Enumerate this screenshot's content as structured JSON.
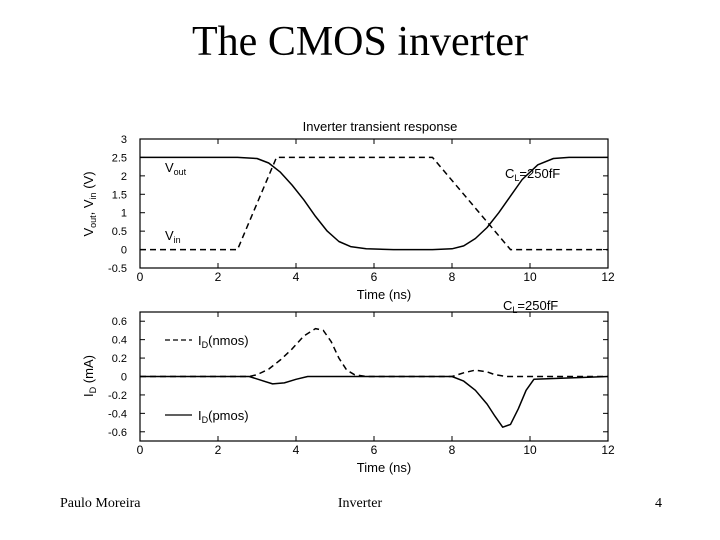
{
  "slide": {
    "title": "The CMOS inverter",
    "footer_left": "Paulo Moreira",
    "footer_center": "Inverter",
    "footer_right": "4"
  },
  "chart_data": [
    {
      "type": "line",
      "title": "Inverter transient response",
      "annotation": "C_L=250fF",
      "xlabel": "Time (ns)",
      "ylabel": "V_out, V_in (V)",
      "xlim": [
        0,
        12
      ],
      "ylim": [
        -0.5,
        3
      ],
      "xticks": [
        "0",
        "2",
        "4",
        "6",
        "8",
        "10",
        "12"
      ],
      "yticks": [
        "-0.5",
        "0",
        "0.5",
        "1",
        "1.5",
        "2",
        "2.5",
        "3"
      ],
      "series": [
        {
          "name": "V_out",
          "style": "solid",
          "x": [
            0,
            2.5,
            3.0,
            3.3,
            3.6,
            3.9,
            4.2,
            4.5,
            4.8,
            5.1,
            5.4,
            5.8,
            6.5,
            7.5,
            8.0,
            8.3,
            8.6,
            8.9,
            9.2,
            9.5,
            9.8,
            10.2,
            10.6,
            11.0,
            12.0
          ],
          "y": [
            2.5,
            2.5,
            2.47,
            2.35,
            2.1,
            1.75,
            1.35,
            0.9,
            0.5,
            0.22,
            0.08,
            0.02,
            0.0,
            0.0,
            0.02,
            0.1,
            0.3,
            0.6,
            1.0,
            1.45,
            1.9,
            2.3,
            2.47,
            2.5,
            2.5
          ]
        },
        {
          "name": "V_in",
          "style": "dashed",
          "x": [
            0,
            2.5,
            3.0,
            3.5,
            7.5,
            9.5,
            12
          ],
          "y": [
            0,
            0,
            1.25,
            2.5,
            2.5,
            0,
            0
          ]
        }
      ]
    },
    {
      "type": "line",
      "annotation": "C_L=250fF",
      "xlabel": "Time (ns)",
      "ylabel": "I_D (mA)",
      "xlim": [
        0,
        12
      ],
      "ylim": [
        -0.7,
        0.7
      ],
      "xticks": [
        "0",
        "2",
        "4",
        "6",
        "8",
        "10",
        "12"
      ],
      "yticks": [
        "0.6",
        "0.4",
        "0.2",
        "0",
        "-0.2",
        "-0.4",
        "-0.6"
      ],
      "series": [
        {
          "name": "I_D(nmos)",
          "style": "dashed",
          "x": [
            0,
            2.8,
            3.0,
            3.3,
            3.6,
            3.9,
            4.2,
            4.5,
            4.7,
            4.9,
            5.1,
            5.3,
            5.5,
            5.8,
            8.0,
            8.3,
            8.6,
            8.9,
            9.1,
            9.4,
            12
          ],
          "y": [
            0,
            0,
            0.02,
            0.08,
            0.18,
            0.3,
            0.44,
            0.52,
            0.5,
            0.38,
            0.2,
            0.07,
            0.02,
            0,
            0,
            0.04,
            0.07,
            0.05,
            0.02,
            0,
            0
          ]
        },
        {
          "name": "I_D(pmos)",
          "style": "solid",
          "x": [
            0,
            2.8,
            3.1,
            3.4,
            3.7,
            4.0,
            4.3,
            8.0,
            8.3,
            8.6,
            8.9,
            9.1,
            9.3,
            9.5,
            9.7,
            9.9,
            10.1,
            12
          ],
          "y": [
            0,
            0,
            -0.04,
            -0.08,
            -0.07,
            -0.03,
            0,
            0,
            -0.05,
            -0.15,
            -0.3,
            -0.43,
            -0.55,
            -0.52,
            -0.35,
            -0.15,
            -0.03,
            0
          ]
        }
      ]
    }
  ]
}
